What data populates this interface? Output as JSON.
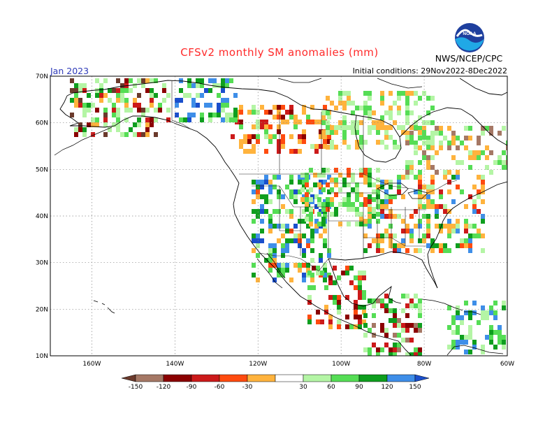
{
  "header": {
    "title": "CFSv2 monthly SM anomalies (mm)",
    "month": "Jan 2023",
    "initial_conditions": "Initial conditions: 29Nov2022-8Dec2022",
    "agency": "NWS/NCEP/CPC",
    "logo_text": "NOAA"
  },
  "map": {
    "lat_labels": [
      "70N",
      "60N",
      "50N",
      "40N",
      "30N",
      "20N",
      "10N"
    ],
    "lon_labels": [
      "160W",
      "140W",
      "120W",
      "100W",
      "80W",
      "60W"
    ],
    "lat_range": [
      10,
      70
    ],
    "lon_range": [
      -170,
      -60
    ],
    "grid": "dotted"
  },
  "colorbar": {
    "labels": [
      "-150",
      "-120",
      "-90",
      "-60",
      "-30",
      "30",
      "60",
      "90",
      "120",
      "150"
    ],
    "colors": [
      "#6b3a2c",
      "#a57865",
      "#8b0000",
      "#cc1a1a",
      "#ff4b0f",
      "#ffb33d",
      "#ffffff",
      "#b4f5a5",
      "#55dd55",
      "#0e9e1e",
      "#3e8ee8",
      "#1a4fcc"
    ]
  },
  "colors": {
    "dry_extreme": "#6b3a2c",
    "wet_extreme": "#1a4fcc",
    "title": "#ff2a2a",
    "month": "#2e3ab8"
  }
}
